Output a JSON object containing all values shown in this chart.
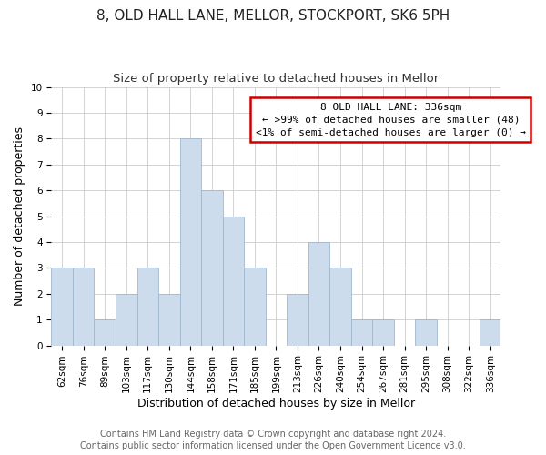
{
  "title": "8, OLD HALL LANE, MELLOR, STOCKPORT, SK6 5PH",
  "subtitle": "Size of property relative to detached houses in Mellor",
  "xlabel": "Distribution of detached houses by size in Mellor",
  "ylabel": "Number of detached properties",
  "bar_labels": [
    "62sqm",
    "76sqm",
    "89sqm",
    "103sqm",
    "117sqm",
    "130sqm",
    "144sqm",
    "158sqm",
    "171sqm",
    "185sqm",
    "199sqm",
    "213sqm",
    "226sqm",
    "240sqm",
    "254sqm",
    "267sqm",
    "281sqm",
    "295sqm",
    "308sqm",
    "322sqm",
    "336sqm"
  ],
  "bar_heights": [
    3,
    3,
    1,
    2,
    3,
    2,
    8,
    6,
    5,
    3,
    0,
    2,
    4,
    3,
    1,
    1,
    0,
    1,
    0,
    0,
    1
  ],
  "bar_color": "#ccdcec",
  "bar_edgecolor": "#a0b8cc",
  "annotation_line1": "8 OLD HALL LANE: 336sqm",
  "annotation_line2": "← >99% of detached houses are smaller (48)",
  "annotation_line3": "<1% of semi-detached houses are larger (0) →",
  "annotation_box_facecolor": "#ffffff",
  "annotation_box_edgecolor": "#cc0000",
  "ylim": [
    0,
    10
  ],
  "yticks": [
    0,
    1,
    2,
    3,
    4,
    5,
    6,
    7,
    8,
    9,
    10
  ],
  "footer_line1": "Contains HM Land Registry data © Crown copyright and database right 2024.",
  "footer_line2": "Contains public sector information licensed under the Open Government Licence v3.0.",
  "title_fontsize": 11,
  "subtitle_fontsize": 9.5,
  "axis_label_fontsize": 9,
  "tick_fontsize": 7.5,
  "annotation_fontsize": 8,
  "footer_fontsize": 7,
  "grid_color": "#cccccc",
  "background_color": "#ffffff"
}
